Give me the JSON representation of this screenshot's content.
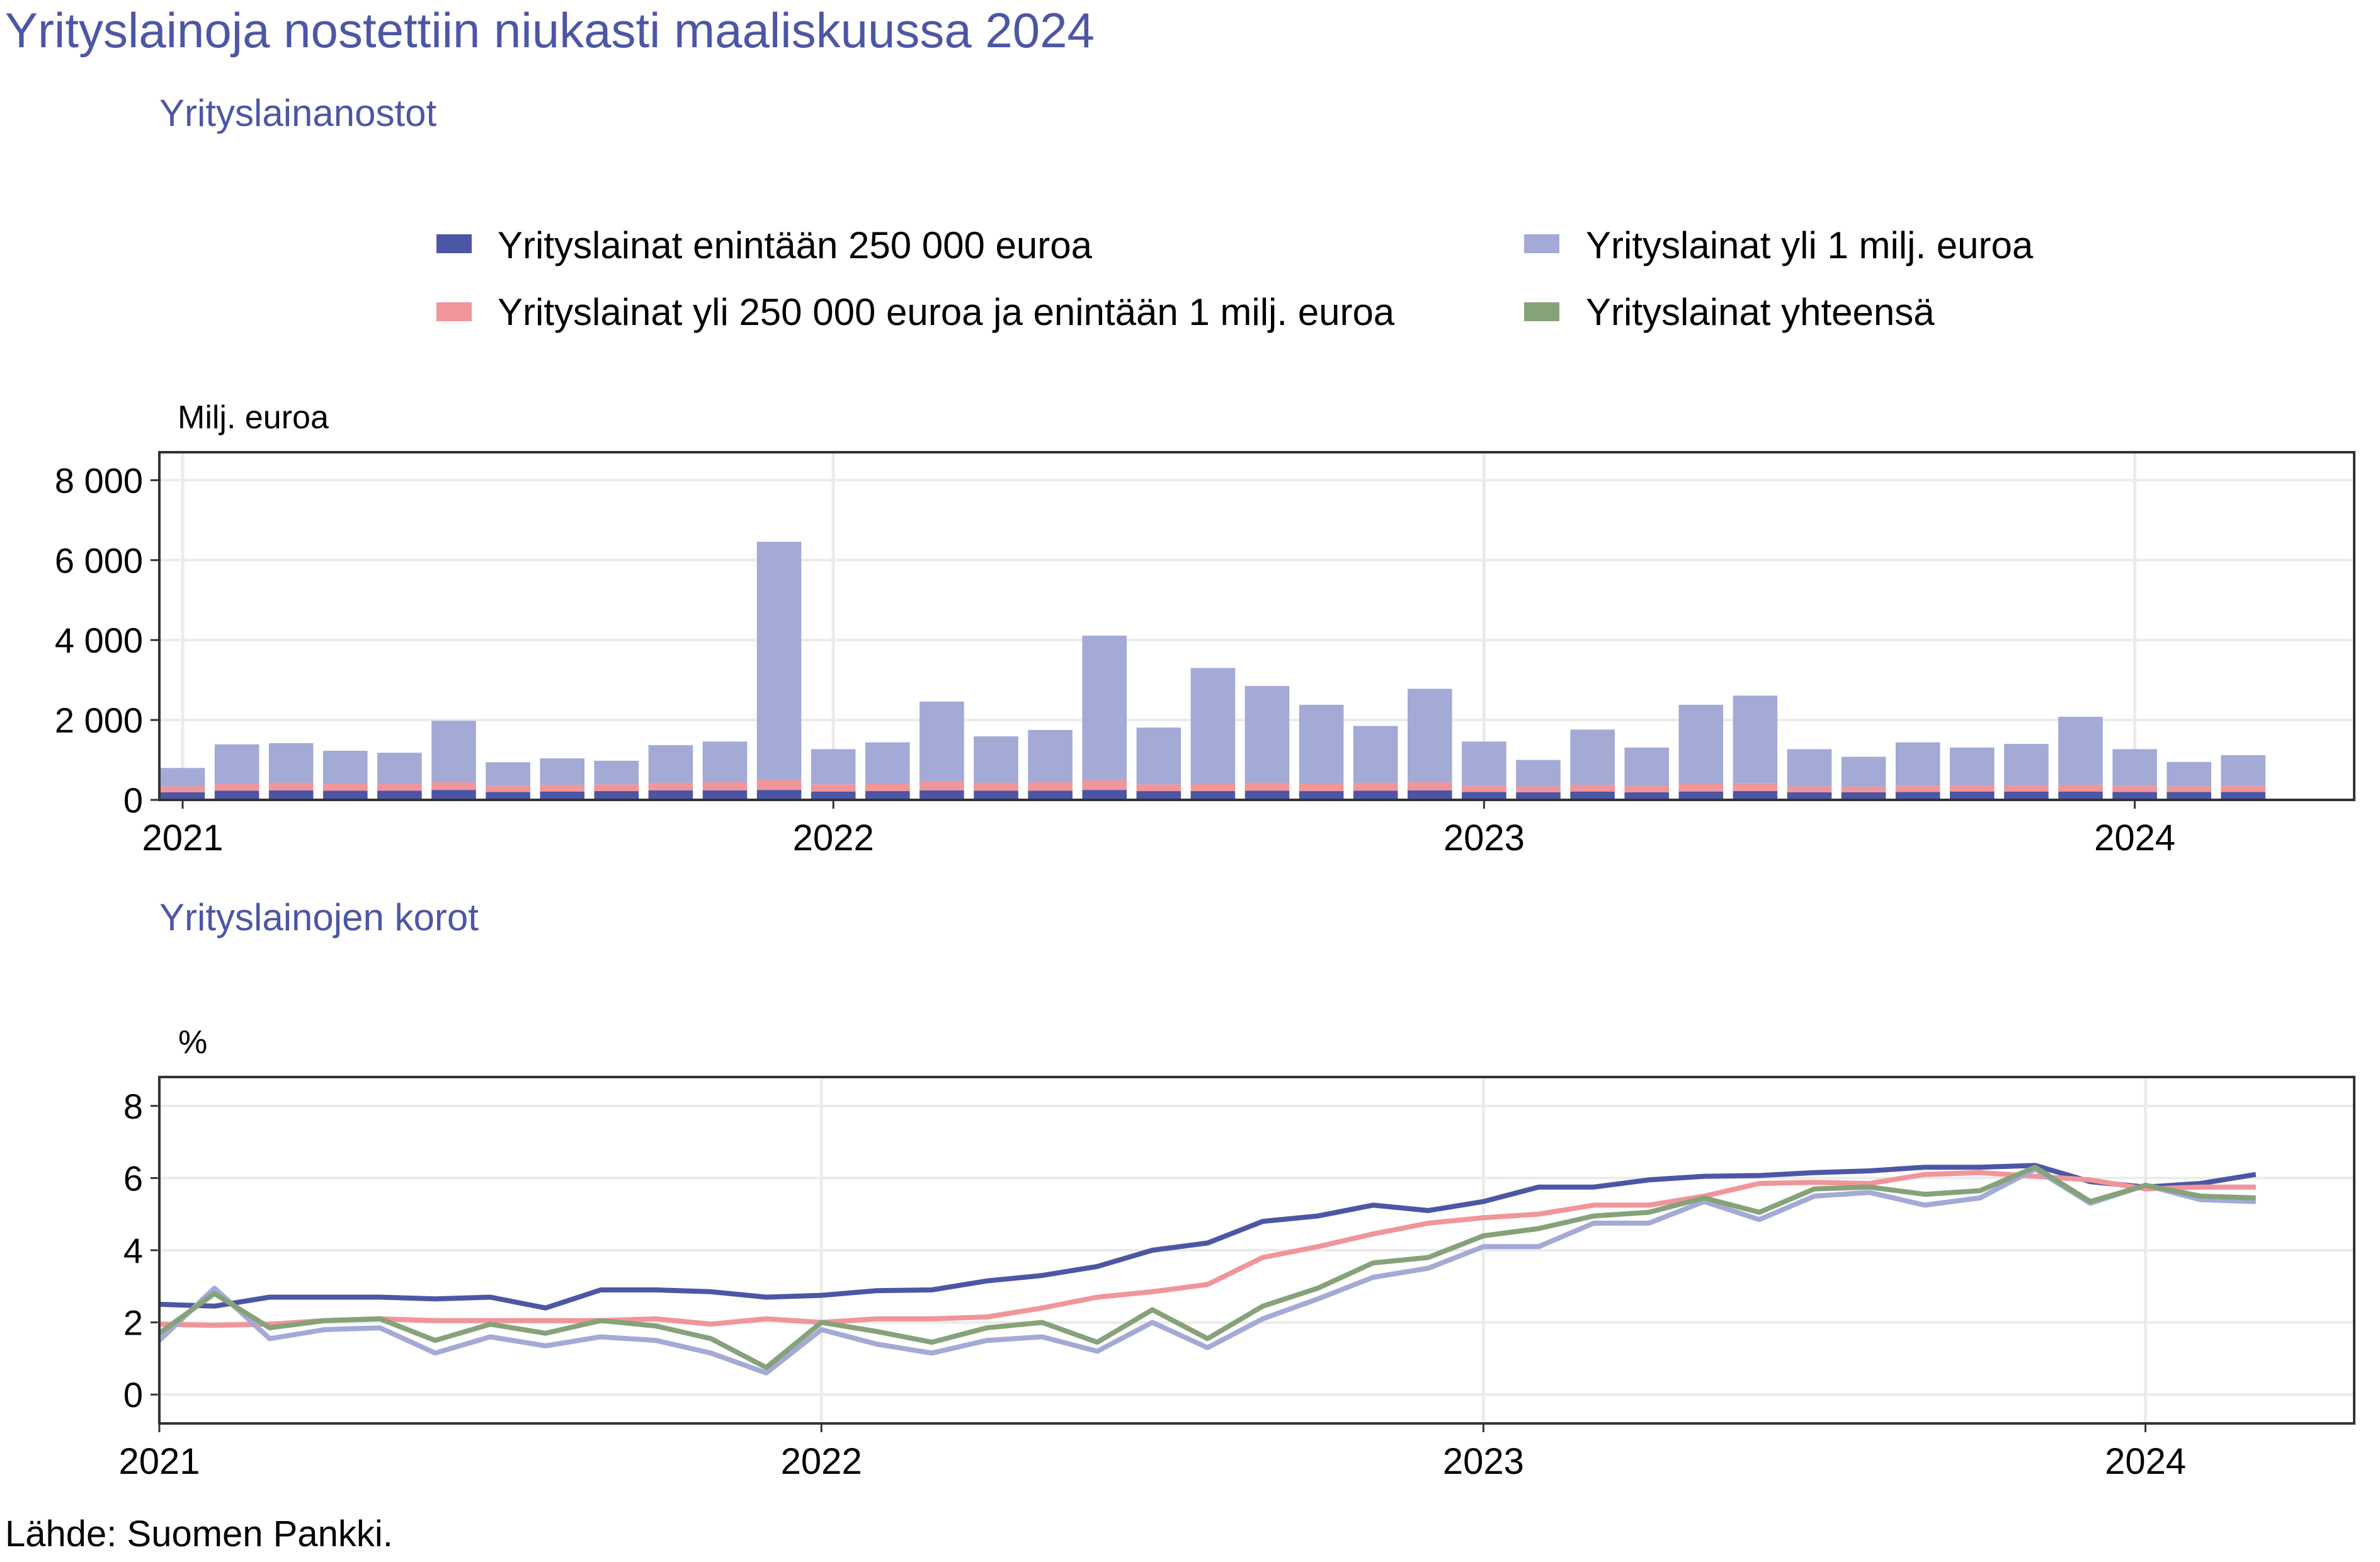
{
  "title": "Yrityslainoja nostettiin niukasti maaliskuussa 2024",
  "source": "Lähde: Suomen Pankki.",
  "colors": {
    "small": "#4d56a5",
    "medium": "#f0959a",
    "large": "#a3aad6",
    "total": "#86a279"
  },
  "legend": {
    "small": "Yrityslainat enintään 250 000 euroa",
    "medium": "Yrityslainat yli 250 000 euroa ja enintään 1 milj. euroa",
    "large": "Yrityslainat yli 1 milj. euroa",
    "total": "Yrityslainat yhteensä"
  },
  "chart_data": [
    {
      "type": "bar",
      "stacked": true,
      "title": "Yrityslainanostot",
      "ylabel": "Milj. euroa",
      "ylim": [
        0,
        8700
      ],
      "yticks": [
        0,
        2000,
        4000,
        6000,
        8000
      ],
      "ytick_labels": [
        "0",
        "2 000",
        "4 000",
        "6 000",
        "8 000"
      ],
      "x_ticks": [
        "2021",
        "2022",
        "2023",
        "2024"
      ],
      "grid": true,
      "x": [
        "2021-01",
        "2021-02",
        "2021-03",
        "2021-04",
        "2021-05",
        "2021-06",
        "2021-07",
        "2021-08",
        "2021-09",
        "2021-10",
        "2021-11",
        "2021-12",
        "2022-01",
        "2022-02",
        "2022-03",
        "2022-04",
        "2022-05",
        "2022-06",
        "2022-07",
        "2022-08",
        "2022-09",
        "2022-10",
        "2022-11",
        "2022-12",
        "2023-01",
        "2023-02",
        "2023-03",
        "2023-04",
        "2023-05",
        "2023-06",
        "2023-07",
        "2023-08",
        "2023-09",
        "2023-10",
        "2023-11",
        "2023-12",
        "2024-01",
        "2024-02",
        "2024-03"
      ],
      "series": [
        {
          "name": "Yrityslainat enintään 250 000 euroa",
          "values": [
            190,
            230,
            240,
            230,
            230,
            250,
            200,
            210,
            220,
            240,
            240,
            250,
            210,
            220,
            240,
            230,
            230,
            250,
            220,
            220,
            230,
            220,
            230,
            240,
            200,
            190,
            210,
            190,
            210,
            220,
            190,
            190,
            200,
            210,
            210,
            210,
            200,
            200,
            200
          ]
        },
        {
          "name": "Yrityslainat yli 250 000 euroa ja enintään 1 milj. euroa",
          "values": [
            150,
            170,
            190,
            180,
            170,
            190,
            160,
            170,
            170,
            190,
            200,
            250,
            180,
            190,
            220,
            200,
            210,
            240,
            170,
            180,
            200,
            190,
            200,
            200,
            150,
            150,
            170,
            160,
            190,
            200,
            150,
            140,
            150,
            160,
            160,
            170,
            150,
            140,
            150
          ]
        },
        {
          "name": "Yrityslainat yli 1 milj. euroa",
          "values": [
            460,
            990,
            990,
            820,
            780,
            1540,
            580,
            660,
            590,
            940,
            1020,
            5960,
            880,
            1030,
            2000,
            1160,
            1310,
            3620,
            1420,
            2900,
            2420,
            1970,
            1420,
            2340,
            1110,
            660,
            1380,
            960,
            1980,
            2190,
            930,
            750,
            1090,
            940,
            1030,
            1700,
            920,
            610,
            770
          ]
        }
      ]
    },
    {
      "type": "line",
      "title": "Yrityslainojen korot",
      "ylabel": "%",
      "ylim": [
        -0.8,
        8.8
      ],
      "yticks": [
        0,
        2,
        4,
        6,
        8
      ],
      "ytick_labels": [
        "0",
        "2",
        "4",
        "6",
        "8"
      ],
      "x_ticks": [
        "2021",
        "2022",
        "2023",
        "2024"
      ],
      "grid": true,
      "x": [
        "2021-01",
        "2021-02",
        "2021-03",
        "2021-04",
        "2021-05",
        "2021-06",
        "2021-07",
        "2021-08",
        "2021-09",
        "2021-10",
        "2021-11",
        "2021-12",
        "2022-01",
        "2022-02",
        "2022-03",
        "2022-04",
        "2022-05",
        "2022-06",
        "2022-07",
        "2022-08",
        "2022-09",
        "2022-10",
        "2022-11",
        "2022-12",
        "2023-01",
        "2023-02",
        "2023-03",
        "2023-04",
        "2023-05",
        "2023-06",
        "2023-07",
        "2023-08",
        "2023-09",
        "2023-10",
        "2023-11",
        "2023-12",
        "2024-01",
        "2024-02",
        "2024-03"
      ],
      "series": [
        {
          "name": "Yrityslainat enintään 250 000 euroa",
          "values": [
            2.5,
            2.45,
            2.7,
            2.7,
            2.7,
            2.65,
            2.7,
            2.4,
            2.9,
            2.9,
            2.85,
            2.7,
            2.75,
            2.88,
            2.9,
            3.15,
            3.3,
            3.55,
            4.0,
            4.2,
            4.8,
            4.95,
            5.25,
            5.1,
            5.35,
            5.75,
            5.75,
            5.95,
            6.05,
            6.07,
            6.15,
            6.2,
            6.3,
            6.3,
            6.35,
            5.9,
            5.75,
            5.85,
            6.1
          ]
        },
        {
          "name": "Yrityslainat yli 250 000 euroa ja enintään 1 milj. euroa",
          "values": [
            1.95,
            1.92,
            1.95,
            2.05,
            2.1,
            2.05,
            2.05,
            2.05,
            2.05,
            2.1,
            1.95,
            2.1,
            2.0,
            2.1,
            2.1,
            2.15,
            2.4,
            2.7,
            2.85,
            3.05,
            3.8,
            4.1,
            4.45,
            4.75,
            4.9,
            5.0,
            5.25,
            5.25,
            5.5,
            5.85,
            5.88,
            5.85,
            6.1,
            6.15,
            6.05,
            5.95,
            5.7,
            5.75,
            5.75
          ]
        },
        {
          "name": "Yrityslainat yli 1 milj. euroa",
          "values": [
            1.5,
            2.95,
            1.55,
            1.8,
            1.85,
            1.15,
            1.6,
            1.35,
            1.6,
            1.5,
            1.15,
            0.6,
            1.8,
            1.4,
            1.15,
            1.5,
            1.6,
            1.2,
            2.0,
            1.3,
            2.1,
            2.65,
            3.25,
            3.5,
            4.1,
            4.1,
            4.75,
            4.75,
            5.35,
            4.85,
            5.5,
            5.6,
            5.25,
            5.45,
            6.25,
            5.3,
            5.8,
            5.4,
            5.35
          ]
        },
        {
          "name": "Yrityslainat yhteensä",
          "values": [
            1.7,
            2.8,
            1.85,
            2.05,
            2.1,
            1.5,
            1.95,
            1.7,
            2.05,
            1.9,
            1.55,
            0.75,
            2.0,
            1.75,
            1.45,
            1.85,
            2.0,
            1.45,
            2.35,
            1.55,
            2.45,
            2.95,
            3.65,
            3.8,
            4.4,
            4.6,
            4.95,
            5.05,
            5.45,
            5.05,
            5.7,
            5.75,
            5.55,
            5.65,
            6.3,
            5.35,
            5.8,
            5.5,
            5.45
          ]
        }
      ]
    }
  ]
}
